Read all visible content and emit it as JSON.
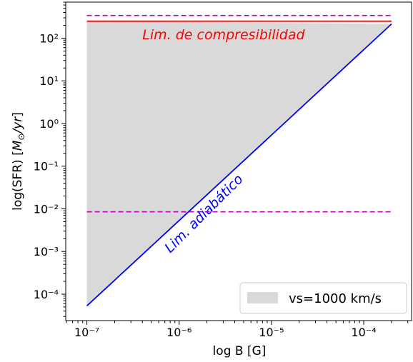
{
  "chart_data": {
    "type": "line",
    "xscale": "log",
    "yscale": "log",
    "xlim": [
      5.9e-08,
      0.00033
    ],
    "ylim": [
      2.4e-05,
      700
    ],
    "xticks": [
      1e-07,
      1e-06,
      1e-05,
      0.0001
    ],
    "yticks": [
      0.0001,
      0.001,
      0.01,
      0.1,
      1,
      10,
      100
    ],
    "xlabel": "log B [G]",
    "ylabel": {
      "prefix": "log(SFR) [",
      "unit_m": "M",
      "unit_sub": "⊙",
      "unit_rest": "/yr",
      "suffix": "]"
    },
    "grid": false,
    "legend_position": "lower-right",
    "series": [
      {
        "name": "vs=1000 km/s",
        "kind": "fill",
        "color": "#d9d9d9",
        "x": [
          1e-07,
          0.0002,
          1e-07
        ],
        "y": [
          250,
          215,
          5.3e-05
        ]
      },
      {
        "kind": "line",
        "color": "#0000ff",
        "style": "solid",
        "x": [
          1e-07,
          0.0002
        ],
        "y": [
          5.3e-05,
          215
        ]
      },
      {
        "kind": "line",
        "color": "#ff0000",
        "style": "solid",
        "x": [
          1e-07,
          0.0002
        ],
        "y": [
          250,
          250
        ]
      },
      {
        "kind": "line",
        "color": "#bf00bf",
        "style": "dashed",
        "x": [
          1e-07,
          0.0002
        ],
        "y": [
          340,
          340
        ]
      },
      {
        "kind": "line",
        "color": "#bf00bf",
        "style": "dashed",
        "x": [
          1e-07,
          0.0002
        ],
        "y": [
          0.0085,
          0.0085
        ]
      }
    ],
    "annotations": [
      {
        "text": "Lim. de compresibilidad",
        "color": "#ff0000",
        "x": 4e-07,
        "y": 95,
        "rotation": 0
      },
      {
        "text": "Lim. adiabático",
        "color": "#0000ff",
        "x": 8e-07,
        "y": 0.0009,
        "rotation": -45
      }
    ]
  }
}
